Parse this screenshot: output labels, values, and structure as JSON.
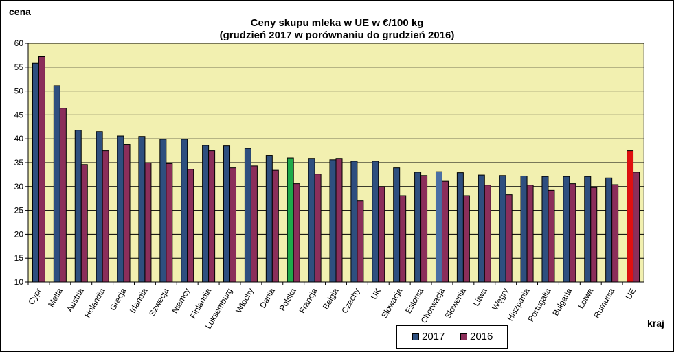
{
  "chart_data": {
    "type": "bar",
    "title": "Ceny skupu mleka  w UE w €/100 kg",
    "subtitle": "(grudzień 2017 w porównaniu do grudzień 2016)",
    "ylabel": "cena",
    "xlabel": "kraj",
    "ylim": [
      10,
      60
    ],
    "yticks": [
      10,
      15,
      20,
      25,
      30,
      35,
      40,
      45,
      50,
      55,
      60
    ],
    "grid": true,
    "legend_position": "bottom-right",
    "categories": [
      "Cypr",
      "Malta",
      "Austria",
      "Holandia",
      "Grecja",
      "Irlandia",
      "Szwecja",
      "Niemcy",
      "Finlandia",
      "Luksemburg",
      "Włochy",
      "Dania",
      "Polska",
      "Francja",
      "Belgia",
      "Czechy",
      "UK",
      "Słowacja",
      "Estonia",
      "Chorwacja",
      "Słowenia",
      "Litwa",
      "Węgry",
      "Hiszpania",
      "Portugalia",
      "Bułgaria",
      "Łotwa",
      "Rumunia",
      "UE"
    ],
    "series": [
      {
        "name": "2017",
        "color": "#2e4f7f",
        "values": [
          55.8,
          51.1,
          41.8,
          41.5,
          40.6,
          40.5,
          39.9,
          39.9,
          38.6,
          38.5,
          38.0,
          36.5,
          36.0,
          35.9,
          35.6,
          35.3,
          35.3,
          33.9,
          33.0,
          33.1,
          32.9,
          32.4,
          32.3,
          32.2,
          32.1,
          32.1,
          32.1,
          31.8,
          37.5
        ]
      },
      {
        "name": "2016",
        "color": "#8b2e5a",
        "values": [
          57.2,
          46.4,
          34.6,
          37.5,
          38.8,
          35.0,
          34.8,
          33.6,
          37.5,
          33.9,
          34.3,
          33.4,
          30.6,
          32.6,
          35.9,
          27.0,
          30.0,
          28.1,
          32.3,
          31.1,
          28.1,
          30.3,
          28.3,
          30.3,
          29.2,
          30.6,
          29.8,
          30.4,
          33.0
        ]
      }
    ],
    "highlight_colors": {
      "Polska": "#1faa4a",
      "Chorwacja": "#4a6fa5",
      "UE": "#e01010"
    },
    "plot_background": "#f2f0b0"
  }
}
